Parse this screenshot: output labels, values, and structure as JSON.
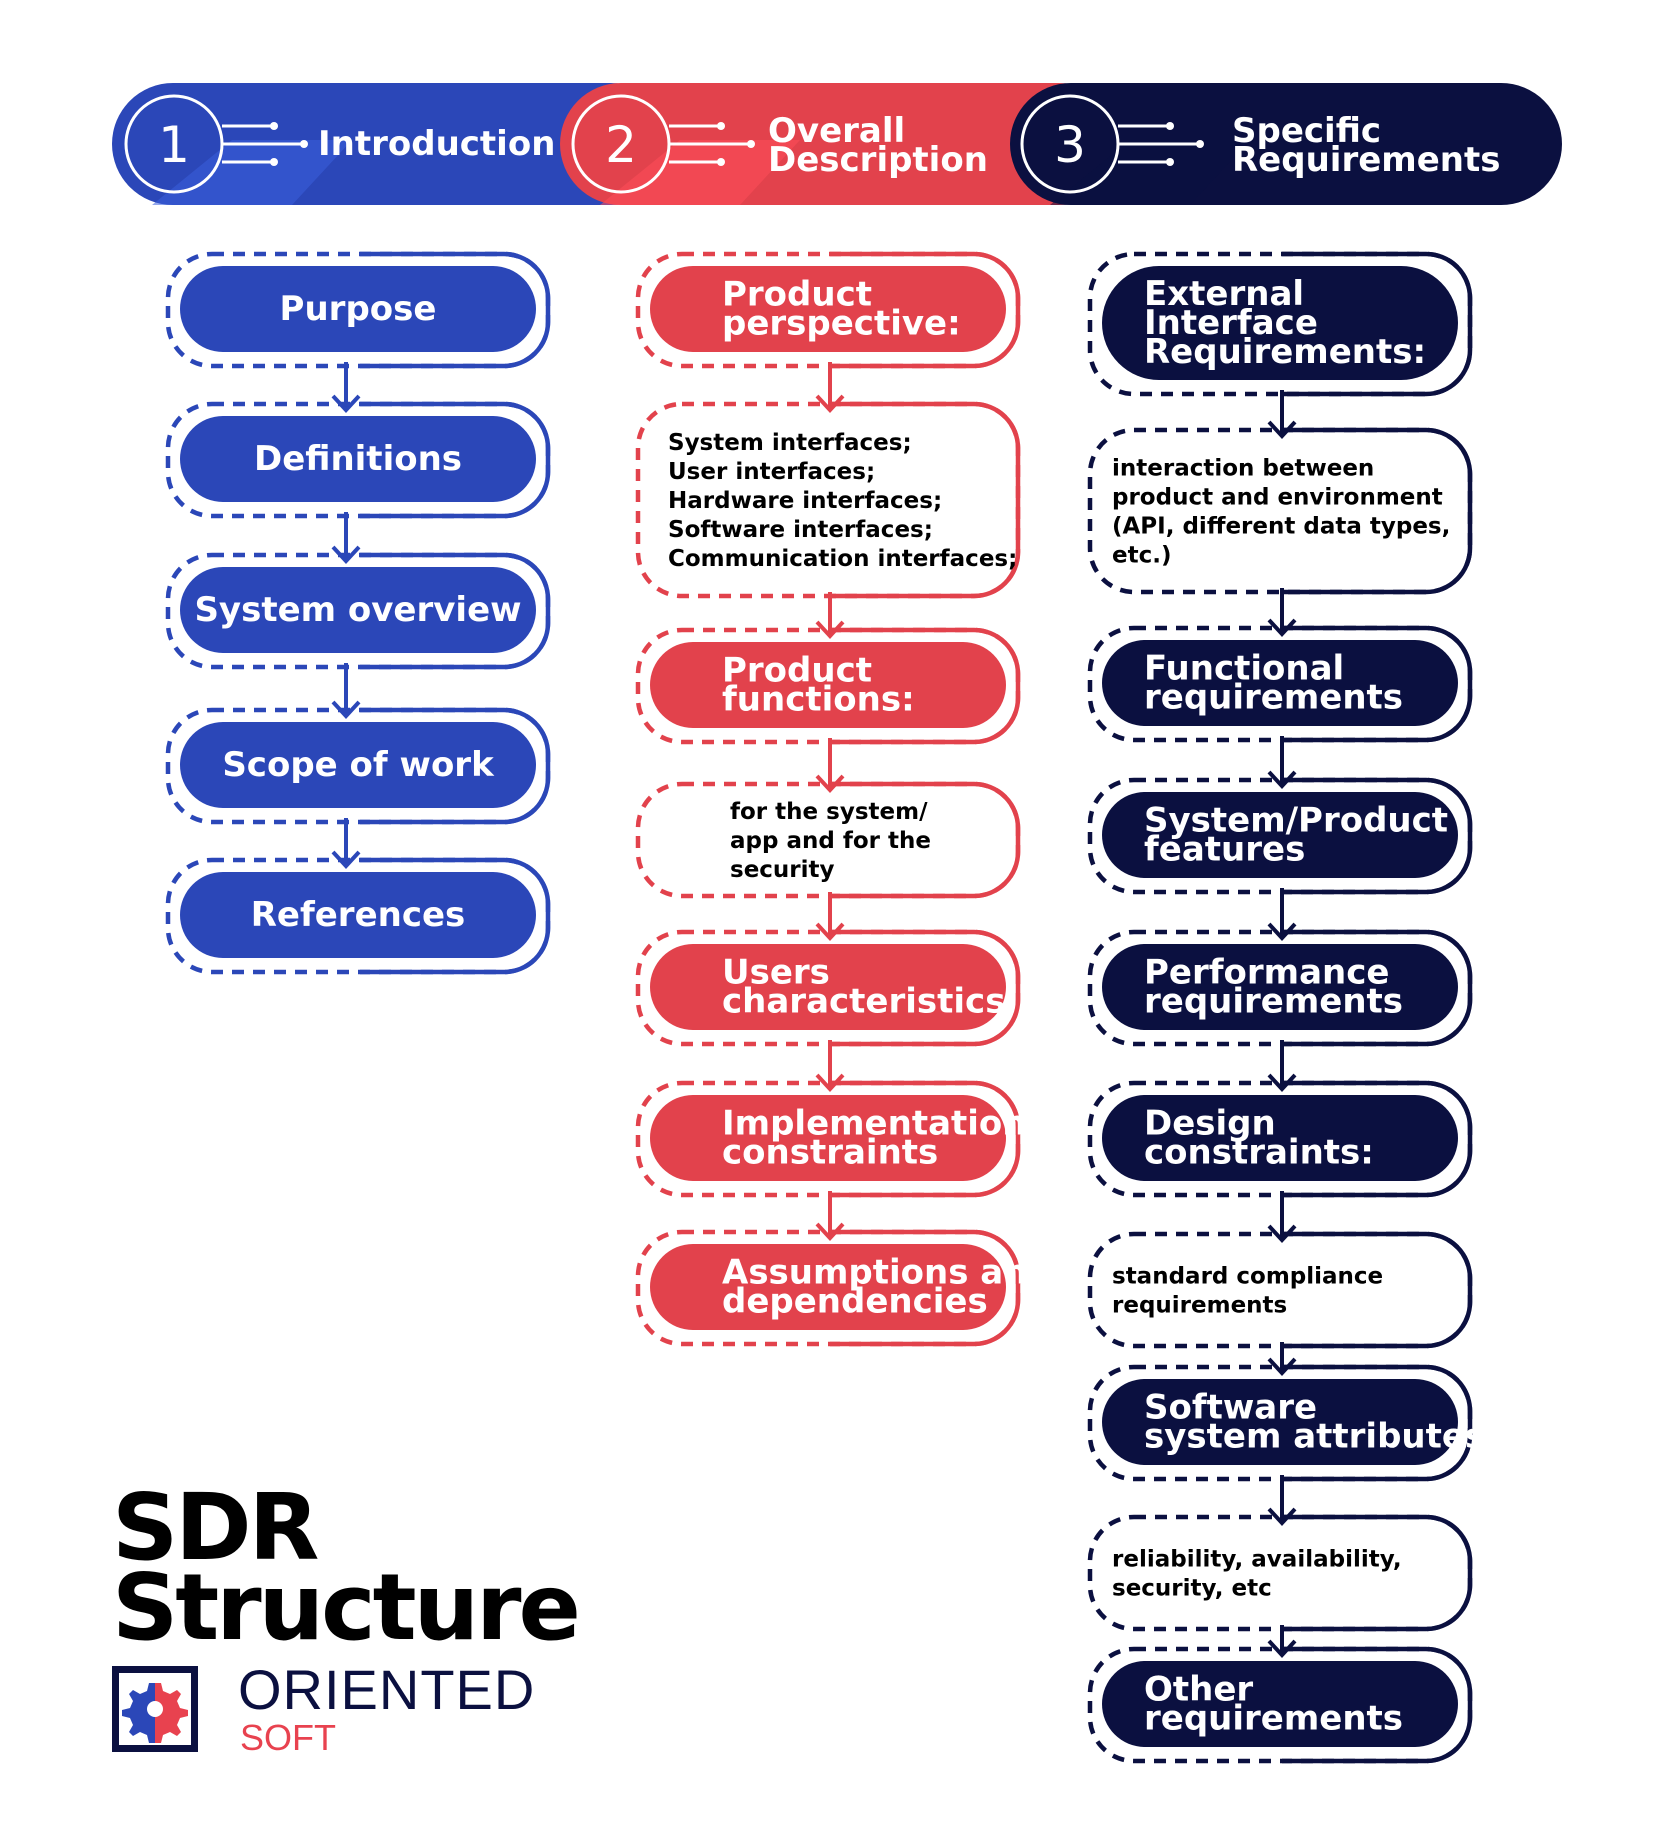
{
  "colors": {
    "blue": "#2b47b8",
    "blue_light": "#3a5fdc",
    "red": "#e2424c",
    "red_light": "#ff4f59",
    "navy": "#0b1040"
  },
  "header": [
    {
      "number": "1",
      "title": [
        "Introduction"
      ],
      "color": "blue"
    },
    {
      "number": "2",
      "title": [
        "Overall",
        "Description"
      ],
      "color": "red"
    },
    {
      "number": "3",
      "title": [
        "Specific",
        "Requirements"
      ],
      "color": "navy"
    }
  ],
  "columns": [
    {
      "color": "blue",
      "items": [
        {
          "kind": "pill",
          "name": "purpose",
          "lines": [
            "Purpose"
          ]
        },
        {
          "kind": "pill",
          "name": "definitions",
          "lines": [
            "Definitions"
          ]
        },
        {
          "kind": "pill",
          "name": "system-overview",
          "lines": [
            "System overview"
          ]
        },
        {
          "kind": "pill",
          "name": "scope-of-work",
          "lines": [
            "Scope of work"
          ]
        },
        {
          "kind": "pill",
          "name": "references",
          "lines": [
            "References"
          ]
        }
      ]
    },
    {
      "color": "red",
      "items": [
        {
          "kind": "pill",
          "name": "product-perspective",
          "lines": [
            "Product",
            "perspective:"
          ]
        },
        {
          "kind": "note",
          "name": "interfaces-note",
          "lines": [
            "System interfaces;",
            "User interfaces;",
            "Hardware interfaces;",
            "Software interfaces;",
            "Communication interfaces;"
          ]
        },
        {
          "kind": "pill",
          "name": "product-functions",
          "lines": [
            "Product",
            "functions:"
          ]
        },
        {
          "kind": "note",
          "name": "functions-note",
          "lines": [
            "for the system/",
            "app and for the",
            "security"
          ]
        },
        {
          "kind": "pill",
          "name": "users-characteristics",
          "lines": [
            "Users",
            "characteristics"
          ]
        },
        {
          "kind": "pill",
          "name": "implementation-constraints",
          "lines": [
            "Implementation",
            "constraints"
          ]
        },
        {
          "kind": "pill",
          "name": "assumptions-dependencies",
          "lines": [
            "Assumptions and",
            "dependencies"
          ]
        }
      ]
    },
    {
      "color": "navy",
      "items": [
        {
          "kind": "pill",
          "name": "external-interface-requirements",
          "lines": [
            "External",
            "Interface",
            "Requirements:"
          ]
        },
        {
          "kind": "note",
          "name": "interaction-note",
          "lines": [
            "interaction between",
            "product and environment",
            "(API, different data types,",
            "etc.)"
          ]
        },
        {
          "kind": "pill",
          "name": "functional-requirements",
          "lines": [
            "Functional",
            "requirements"
          ]
        },
        {
          "kind": "pill",
          "name": "system-product-features",
          "lines": [
            "System/Product",
            "features"
          ]
        },
        {
          "kind": "pill",
          "name": "performance-requirements",
          "lines": [
            "Performance",
            "requirements"
          ]
        },
        {
          "kind": "pill",
          "name": "design-constraints",
          "lines": [
            "Design",
            "constraints:"
          ]
        },
        {
          "kind": "note",
          "name": "compliance-note",
          "lines": [
            "standard compliance",
            "requirements"
          ]
        },
        {
          "kind": "pill",
          "name": "software-system-attributes",
          "lines": [
            "Software",
            "system attributes"
          ]
        },
        {
          "kind": "note",
          "name": "attributes-note",
          "lines": [
            "reliability, availability,",
            "security, etc"
          ]
        },
        {
          "kind": "pill",
          "name": "other-requirements",
          "lines": [
            "Other",
            "requirements"
          ]
        }
      ]
    }
  ],
  "title": {
    "line1": "SDR",
    "line2": "Structure"
  },
  "logo": {
    "name": "ORIENTED",
    "sub": "SOFT"
  }
}
